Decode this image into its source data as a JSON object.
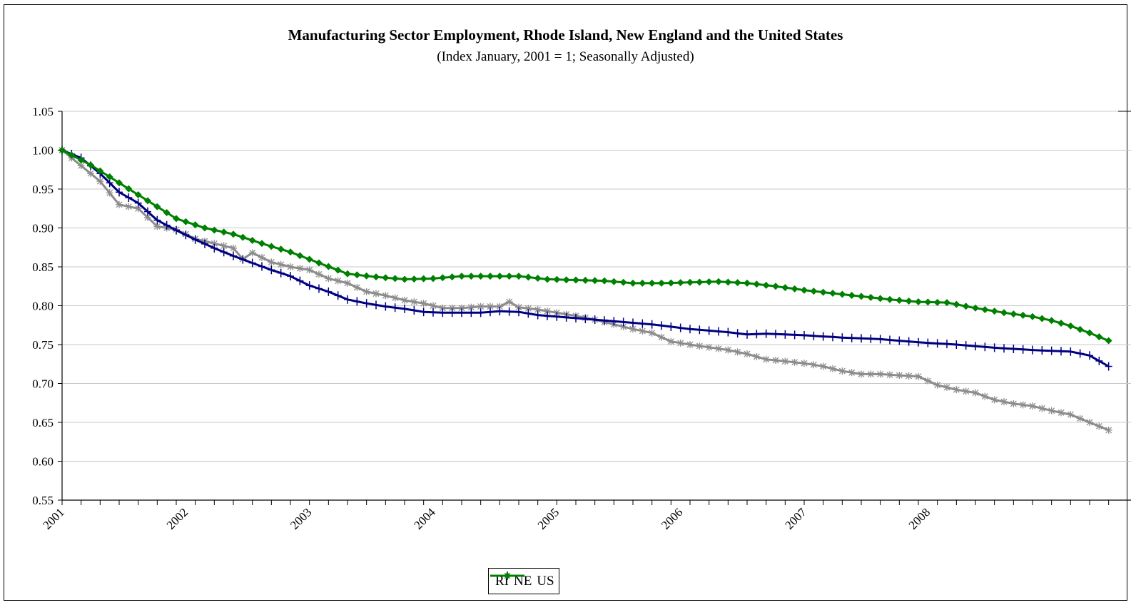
{
  "chart_data": {
    "type": "line",
    "title": "Manufacturing Sector Employment, Rhode Island, New England and the United States",
    "subtitle": "(Index January, 2001 = 1; Seasonally Adjusted)",
    "xlabel": "",
    "ylabel": "",
    "ylim": [
      0.55,
      1.05
    ],
    "yticks": [
      "0.55",
      "0.60",
      "0.65",
      "0.70",
      "0.75",
      "0.80",
      "0.85",
      "0.90",
      "0.95",
      "1.00",
      "1.05"
    ],
    "xticks": [
      "2001",
      "2002",
      "2003",
      "2004",
      "2005",
      "2006",
      "2007",
      "2008"
    ],
    "x_start_year": 2001,
    "frequency": "monthly",
    "grid": "horizontal",
    "legend_position": "bottom",
    "series": [
      {
        "name": "RI",
        "color": "#8c8c8c",
        "marker": "star",
        "anchors": [
          [
            0,
            1.0
          ],
          [
            4,
            0.96
          ],
          [
            6,
            0.93
          ],
          [
            8,
            0.925
          ],
          [
            10,
            0.902
          ],
          [
            12,
            0.898
          ],
          [
            14,
            0.886
          ],
          [
            16,
            0.88
          ],
          [
            18,
            0.874
          ],
          [
            19,
            0.86
          ],
          [
            20,
            0.868
          ],
          [
            22,
            0.856
          ],
          [
            24,
            0.85
          ],
          [
            26,
            0.846
          ],
          [
            28,
            0.835
          ],
          [
            30,
            0.829
          ],
          [
            32,
            0.818
          ],
          [
            34,
            0.813
          ],
          [
            36,
            0.807
          ],
          [
            38,
            0.803
          ],
          [
            40,
            0.797
          ],
          [
            42,
            0.797
          ],
          [
            44,
            0.799
          ],
          [
            46,
            0.799
          ],
          [
            47,
            0.805
          ],
          [
            48,
            0.798
          ],
          [
            50,
            0.795
          ],
          [
            54,
            0.787
          ],
          [
            56,
            0.782
          ],
          [
            58,
            0.776
          ],
          [
            60,
            0.77
          ],
          [
            62,
            0.765
          ],
          [
            64,
            0.754
          ],
          [
            66,
            0.75
          ],
          [
            70,
            0.743
          ],
          [
            72,
            0.738
          ],
          [
            74,
            0.731
          ],
          [
            78,
            0.726
          ],
          [
            80,
            0.722
          ],
          [
            82,
            0.716
          ],
          [
            84,
            0.712
          ],
          [
            86,
            0.712
          ],
          [
            90,
            0.709
          ],
          [
            92,
            0.698
          ],
          [
            94,
            0.692
          ],
          [
            96,
            0.688
          ],
          [
            98,
            0.679
          ],
          [
            100,
            0.674
          ],
          [
            102,
            0.671
          ],
          [
            104,
            0.665
          ],
          [
            106,
            0.66
          ],
          [
            108,
            0.65
          ],
          [
            110,
            0.64
          ]
        ],
        "values": []
      },
      {
        "name": "NE",
        "color": "#000080",
        "marker": "plus",
        "anchors": [
          [
            0,
            1.0
          ],
          [
            2,
            0.99
          ],
          [
            4,
            0.97
          ],
          [
            6,
            0.946
          ],
          [
            8,
            0.932
          ],
          [
            10,
            0.91
          ],
          [
            12,
            0.897
          ],
          [
            14,
            0.885
          ],
          [
            16,
            0.874
          ],
          [
            18,
            0.864
          ],
          [
            20,
            0.855
          ],
          [
            22,
            0.846
          ],
          [
            24,
            0.838
          ],
          [
            26,
            0.826
          ],
          [
            28,
            0.818
          ],
          [
            30,
            0.808
          ],
          [
            32,
            0.803
          ],
          [
            34,
            0.799
          ],
          [
            36,
            0.796
          ],
          [
            38,
            0.792
          ],
          [
            40,
            0.791
          ],
          [
            42,
            0.791
          ],
          [
            44,
            0.791
          ],
          [
            46,
            0.793
          ],
          [
            48,
            0.792
          ],
          [
            50,
            0.788
          ],
          [
            54,
            0.784
          ],
          [
            58,
            0.78
          ],
          [
            62,
            0.776
          ],
          [
            66,
            0.77
          ],
          [
            70,
            0.766
          ],
          [
            72,
            0.763
          ],
          [
            74,
            0.764
          ],
          [
            78,
            0.762
          ],
          [
            82,
            0.759
          ],
          [
            86,
            0.757
          ],
          [
            90,
            0.753
          ],
          [
            94,
            0.75
          ],
          [
            98,
            0.746
          ],
          [
            102,
            0.743
          ],
          [
            106,
            0.741
          ],
          [
            108,
            0.736
          ],
          [
            110,
            0.722
          ]
        ],
        "values": []
      },
      {
        "name": "US",
        "color": "#008000",
        "marker": "diamond",
        "anchors": [
          [
            0,
            1.0
          ],
          [
            3,
            0.981
          ],
          [
            6,
            0.958
          ],
          [
            9,
            0.935
          ],
          [
            12,
            0.912
          ],
          [
            15,
            0.9
          ],
          [
            18,
            0.892
          ],
          [
            21,
            0.88
          ],
          [
            24,
            0.869
          ],
          [
            27,
            0.855
          ],
          [
            30,
            0.841
          ],
          [
            33,
            0.837
          ],
          [
            36,
            0.834
          ],
          [
            39,
            0.835
          ],
          [
            42,
            0.838
          ],
          [
            45,
            0.838
          ],
          [
            48,
            0.838
          ],
          [
            51,
            0.834
          ],
          [
            54,
            0.833
          ],
          [
            57,
            0.832
          ],
          [
            60,
            0.829
          ],
          [
            63,
            0.829
          ],
          [
            66,
            0.83
          ],
          [
            69,
            0.831
          ],
          [
            72,
            0.829
          ],
          [
            75,
            0.825
          ],
          [
            78,
            0.82
          ],
          [
            81,
            0.816
          ],
          [
            84,
            0.812
          ],
          [
            87,
            0.808
          ],
          [
            90,
            0.805
          ],
          [
            93,
            0.804
          ],
          [
            96,
            0.797
          ],
          [
            99,
            0.791
          ],
          [
            102,
            0.786
          ],
          [
            104,
            0.781
          ],
          [
            106,
            0.774
          ],
          [
            108,
            0.765
          ],
          [
            110,
            0.755
          ]
        ],
        "values": []
      }
    ]
  }
}
